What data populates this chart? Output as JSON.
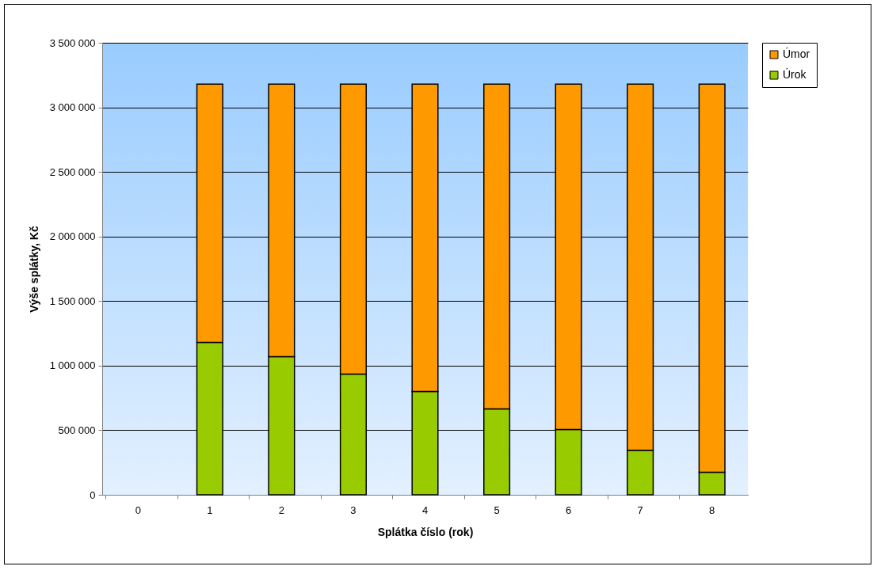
{
  "chart_data": {
    "type": "bar",
    "stacked": true,
    "xlabel": "Splátka číslo (rok)",
    "ylabel": "Výše splátky, Kč",
    "categories": [
      "0",
      "1",
      "2",
      "3",
      "4",
      "5",
      "6",
      "7",
      "8"
    ],
    "series": [
      {
        "name": "Úrok",
        "color": "#99cc00",
        "values": [
          null,
          1180000,
          1070000,
          935000,
          800000,
          665000,
          505000,
          345000,
          175000
        ]
      },
      {
        "name": "Úmor",
        "color": "#ff9900",
        "values": [
          null,
          2000000,
          2110000,
          2245000,
          2380000,
          2515000,
          2675000,
          2835000,
          3005000
        ]
      }
    ],
    "ylim": [
      0,
      3500000
    ],
    "yticks": [
      0,
      500000,
      1000000,
      1500000,
      2000000,
      2500000,
      3000000,
      3500000
    ],
    "grid": "y",
    "legend": "right"
  }
}
